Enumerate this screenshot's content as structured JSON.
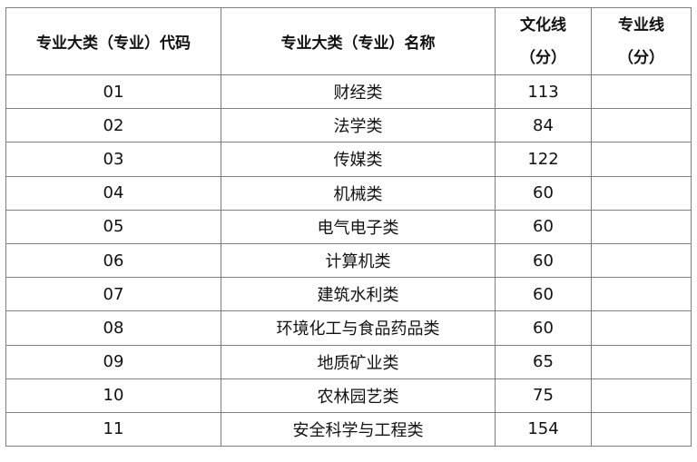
{
  "headers": {
    "code": "专业大类（专业）代码",
    "name": "专业大类（专业）名称",
    "culture_line_1": "文化线",
    "culture_line_2": "（分）",
    "major_line_1": "专业线",
    "major_line_2": "（分）"
  },
  "rows": [
    {
      "code": "01",
      "name": "财经类",
      "culture": "113",
      "major": ""
    },
    {
      "code": "02",
      "name": "法学类",
      "culture": "84",
      "major": ""
    },
    {
      "code": "03",
      "name": "传媒类",
      "culture": "122",
      "major": ""
    },
    {
      "code": "04",
      "name": "机械类",
      "culture": "60",
      "major": ""
    },
    {
      "code": "05",
      "name": "电气电子类",
      "culture": "60",
      "major": ""
    },
    {
      "code": "06",
      "name": "计算机类",
      "culture": "60",
      "major": ""
    },
    {
      "code": "07",
      "name": "建筑水利类",
      "culture": "60",
      "major": ""
    },
    {
      "code": "08",
      "name": "环境化工与食品药品类",
      "culture": "60",
      "major": ""
    },
    {
      "code": "09",
      "name": "地质矿业类",
      "culture": "65",
      "major": ""
    },
    {
      "code": "10",
      "name": "农林园艺类",
      "culture": "75",
      "major": ""
    },
    {
      "code": "11",
      "name": "安全科学与工程类",
      "culture": "154",
      "major": ""
    }
  ]
}
